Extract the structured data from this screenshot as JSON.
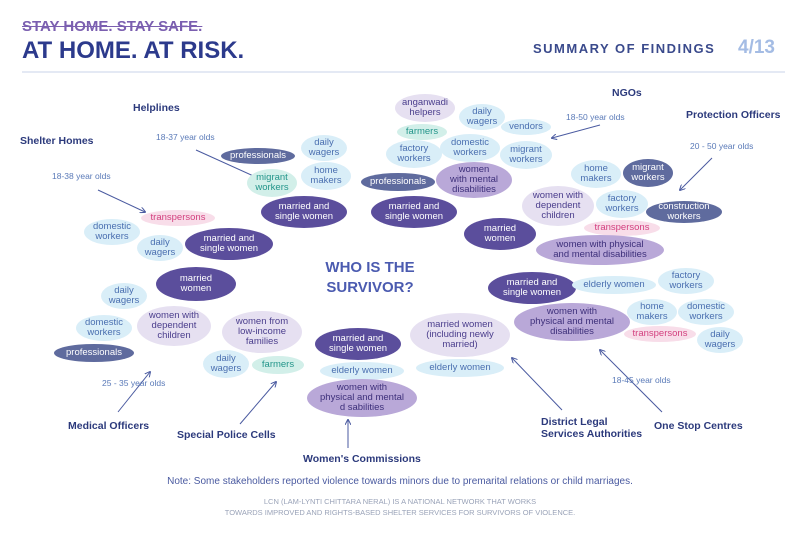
{
  "header": {
    "tagline": "STAY HOME. STAY SAFE.",
    "title": "AT HOME. AT RISK.",
    "section": "SUMMARY OF FINDINGS",
    "page": "4/13"
  },
  "center": "WHO IS THE\nSURVIVOR?",
  "stakeholders": [
    {
      "name": "Shelter Homes",
      "age": "18-38 year olds",
      "groups": [
        "domestic\nworkers",
        "transpersons",
        "daily\nwagers",
        "married and\nsingle women"
      ]
    },
    {
      "name": "Helplines",
      "age": "18-37 year olds",
      "groups": [
        "professionals",
        "daily\nwagers",
        "migrant\nworkers",
        "home\nmakers",
        "married and\nsingle women"
      ]
    },
    {
      "name": "NGOs",
      "age": "18-50 year olds",
      "groups": [
        "anganwadi\nhelpers",
        "daily\nwagers",
        "vendors",
        "farmers",
        "factory\nworkers",
        "domestic\nworkers",
        "migrant\nworkers",
        "professionals",
        "women\nwith mental\ndisabilities",
        "married and\nsingle women",
        "married\nwomen"
      ]
    },
    {
      "name": "Protection Officers",
      "age": "20 - 50 year olds",
      "groups": [
        "home\nmakers",
        "migrant\nworkers",
        "women with\ndependent\nchildren",
        "factory\nworkers",
        "construction\nworkers",
        "transpersons",
        "women with physical\nand mental disabilities"
      ]
    },
    {
      "name": "Medical Officers",
      "age": "25 - 35 year olds",
      "groups": [
        "married\nwomen",
        "daily\nwagers",
        "domestic\nworkers",
        "women with\ndependent\nchildren",
        "professionals"
      ]
    },
    {
      "name": "Special Police Cells",
      "groups": [
        "women from\nlow-income\nfamilies",
        "daily\nwagers",
        "farmers"
      ]
    },
    {
      "name": "Women's Commissions",
      "groups": [
        "married and\nsingle women",
        "elderly women",
        "women with\nphysical and mental\nd sabilities"
      ]
    },
    {
      "name": "District Legal\nServices Authorities",
      "groups": [
        "married women\n(including newly\nmarried)",
        "elderly women"
      ]
    },
    {
      "name": "One Stop Centres",
      "age": "18-45 year olds",
      "groups": [
        "married and\nsingle women",
        "elderly women",
        "factory\nworkers",
        "women with\nphysical and mental\ndisabilities",
        "home\nmakers",
        "domestic\nworkers",
        "transpersons",
        "daily\nwagers"
      ]
    }
  ],
  "note": "Note: Some stakeholders reported violence towards minors due to premarital relations or child marriages.",
  "footer": [
    "LCN (LAM-LYNTI CHITTARA NERAL) IS A NATIONAL NETWORK THAT WORKS",
    "TOWARDS IMPROVED AND RIGHTS-BASED SHELTER SERVICES FOR SURVIVORS OF VIOLENCE."
  ]
}
